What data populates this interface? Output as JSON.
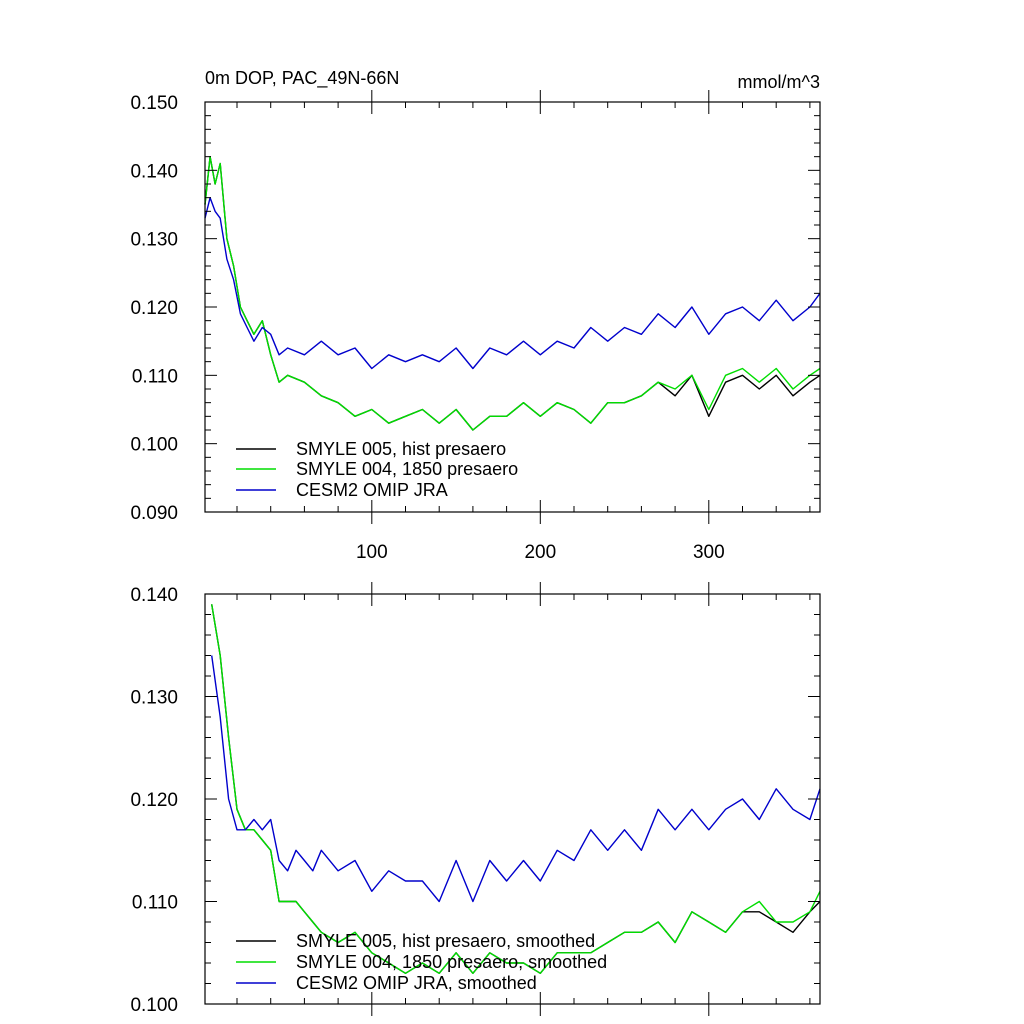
{
  "chart_data": [
    {
      "type": "line",
      "title_left": "0m DOP, PAC_49N-66N",
      "title_right": "mmol/m^3",
      "xlabel": "",
      "ylabel": "",
      "xlim": [
        1,
        366
      ],
      "ylim": [
        0.09,
        0.15
      ],
      "xticks": [
        100,
        200,
        300
      ],
      "xtick_labels": [
        "100",
        "200",
        "300"
      ],
      "yticks": [
        0.09,
        0.1,
        0.11,
        0.12,
        0.13,
        0.14,
        0.15
      ],
      "ytick_labels": [
        "0.090",
        "0.100",
        "0.110",
        "0.120",
        "0.130",
        "0.140",
        "0.150"
      ],
      "grid": false,
      "legend_position": "bottom-left",
      "series": [
        {
          "name": "SMYLE 005, hist presaero",
          "color": "#000000",
          "x": [
            1,
            4,
            7,
            10,
            14,
            18,
            22,
            26,
            30,
            35,
            40,
            45,
            50,
            60,
            70,
            80,
            90,
            100,
            110,
            120,
            130,
            140,
            150,
            160,
            170,
            180,
            190,
            200,
            210,
            220,
            230,
            240,
            250,
            260,
            270,
            280,
            290,
            300,
            310,
            320,
            330,
            340,
            350,
            360,
            366
          ],
          "values": [
            0.135,
            0.142,
            0.138,
            0.141,
            0.13,
            0.126,
            0.12,
            0.118,
            0.116,
            0.118,
            0.113,
            0.109,
            0.11,
            0.109,
            0.107,
            0.106,
            0.104,
            0.105,
            0.103,
            0.104,
            0.105,
            0.103,
            0.105,
            0.102,
            0.104,
            0.104,
            0.106,
            0.104,
            0.106,
            0.105,
            0.103,
            0.106,
            0.106,
            0.107,
            0.109,
            0.107,
            0.11,
            0.104,
            0.109,
            0.11,
            0.108,
            0.11,
            0.107,
            0.109,
            0.11
          ]
        },
        {
          "name": "SMYLE 004, 1850 presaero",
          "color": "#00dd00",
          "x": [
            1,
            4,
            7,
            10,
            14,
            18,
            22,
            26,
            30,
            35,
            40,
            45,
            50,
            60,
            70,
            80,
            90,
            100,
            110,
            120,
            130,
            140,
            150,
            160,
            170,
            180,
            190,
            200,
            210,
            220,
            230,
            240,
            250,
            260,
            270,
            280,
            290,
            300,
            310,
            320,
            330,
            340,
            350,
            360,
            366
          ],
          "values": [
            0.135,
            0.142,
            0.138,
            0.141,
            0.13,
            0.126,
            0.12,
            0.118,
            0.116,
            0.118,
            0.113,
            0.109,
            0.11,
            0.109,
            0.107,
            0.106,
            0.104,
            0.105,
            0.103,
            0.104,
            0.105,
            0.103,
            0.105,
            0.102,
            0.104,
            0.104,
            0.106,
            0.104,
            0.106,
            0.105,
            0.103,
            0.106,
            0.106,
            0.107,
            0.109,
            0.108,
            0.11,
            0.105,
            0.11,
            0.111,
            0.109,
            0.111,
            0.108,
            0.11,
            0.111
          ]
        },
        {
          "name": "CESM2 OMIP JRA",
          "color": "#0000cc",
          "x": [
            1,
            4,
            7,
            10,
            14,
            18,
            22,
            26,
            30,
            35,
            40,
            45,
            50,
            60,
            70,
            80,
            90,
            100,
            110,
            120,
            130,
            140,
            150,
            160,
            170,
            180,
            190,
            200,
            210,
            220,
            230,
            240,
            250,
            260,
            270,
            280,
            290,
            300,
            310,
            320,
            330,
            340,
            350,
            360,
            366
          ],
          "values": [
            0.133,
            0.136,
            0.134,
            0.133,
            0.127,
            0.124,
            0.119,
            0.117,
            0.115,
            0.117,
            0.116,
            0.113,
            0.114,
            0.113,
            0.115,
            0.113,
            0.114,
            0.111,
            0.113,
            0.112,
            0.113,
            0.112,
            0.114,
            0.111,
            0.114,
            0.113,
            0.115,
            0.113,
            0.115,
            0.114,
            0.117,
            0.115,
            0.117,
            0.116,
            0.119,
            0.117,
            0.12,
            0.116,
            0.119,
            0.12,
            0.118,
            0.121,
            0.118,
            0.12,
            0.122
          ]
        }
      ]
    },
    {
      "type": "line",
      "xlim": [
        1,
        366
      ],
      "ylim": [
        0.1,
        0.14
      ],
      "xticks": [
        100,
        200,
        300
      ],
      "yticks": [
        0.1,
        0.11,
        0.12,
        0.13,
        0.14
      ],
      "ytick_labels": [
        "0.100",
        "0.110",
        "0.120",
        "0.130",
        "0.140"
      ],
      "grid": false,
      "legend_position": "bottom-left",
      "series": [
        {
          "name": "SMYLE 005, hist presaero, smoothed",
          "color": "#000000",
          "x": [
            5,
            10,
            15,
            20,
            25,
            30,
            35,
            40,
            45,
            50,
            55,
            60,
            65,
            70,
            80,
            90,
            100,
            110,
            120,
            130,
            140,
            150,
            160,
            170,
            180,
            190,
            200,
            210,
            220,
            230,
            240,
            250,
            260,
            270,
            280,
            290,
            300,
            310,
            320,
            330,
            340,
            350,
            360,
            366
          ],
          "values": [
            0.139,
            0.134,
            0.126,
            0.119,
            0.117,
            0.117,
            0.116,
            0.115,
            0.11,
            0.11,
            0.11,
            0.109,
            0.108,
            0.107,
            0.106,
            0.107,
            0.105,
            0.104,
            0.103,
            0.104,
            0.103,
            0.105,
            0.103,
            0.105,
            0.104,
            0.104,
            0.103,
            0.105,
            0.105,
            0.105,
            0.106,
            0.107,
            0.107,
            0.108,
            0.106,
            0.109,
            0.108,
            0.107,
            0.109,
            0.109,
            0.108,
            0.107,
            0.109,
            0.11
          ]
        },
        {
          "name": "SMYLE 004, 1850 presaero, smoothed",
          "color": "#00dd00",
          "x": [
            5,
            10,
            15,
            20,
            25,
            30,
            35,
            40,
            45,
            50,
            55,
            60,
            65,
            70,
            80,
            90,
            100,
            110,
            120,
            130,
            140,
            150,
            160,
            170,
            180,
            190,
            200,
            210,
            220,
            230,
            240,
            250,
            260,
            270,
            280,
            290,
            300,
            310,
            320,
            330,
            340,
            350,
            360,
            366
          ],
          "values": [
            0.139,
            0.134,
            0.126,
            0.119,
            0.117,
            0.117,
            0.116,
            0.115,
            0.11,
            0.11,
            0.11,
            0.109,
            0.108,
            0.107,
            0.106,
            0.107,
            0.105,
            0.104,
            0.103,
            0.104,
            0.103,
            0.105,
            0.103,
            0.105,
            0.104,
            0.104,
            0.103,
            0.105,
            0.105,
            0.105,
            0.106,
            0.107,
            0.107,
            0.108,
            0.106,
            0.109,
            0.108,
            0.107,
            0.109,
            0.11,
            0.108,
            0.108,
            0.109,
            0.111
          ]
        },
        {
          "name": "CESM2 OMIP JRA, smoothed",
          "color": "#0000cc",
          "x": [
            5,
            10,
            15,
            20,
            25,
            30,
            35,
            40,
            45,
            50,
            55,
            60,
            65,
            70,
            80,
            90,
            100,
            110,
            120,
            130,
            140,
            150,
            160,
            170,
            180,
            190,
            200,
            210,
            220,
            230,
            240,
            250,
            260,
            270,
            280,
            290,
            300,
            310,
            320,
            330,
            340,
            350,
            360,
            366
          ],
          "values": [
            0.134,
            0.128,
            0.12,
            0.117,
            0.117,
            0.118,
            0.117,
            0.118,
            0.114,
            0.113,
            0.115,
            0.114,
            0.113,
            0.115,
            0.113,
            0.114,
            0.111,
            0.113,
            0.112,
            0.112,
            0.11,
            0.114,
            0.11,
            0.114,
            0.112,
            0.114,
            0.112,
            0.115,
            0.114,
            0.117,
            0.115,
            0.117,
            0.115,
            0.119,
            0.117,
            0.119,
            0.117,
            0.119,
            0.12,
            0.118,
            0.121,
            0.119,
            0.118,
            0.121
          ]
        }
      ]
    }
  ]
}
